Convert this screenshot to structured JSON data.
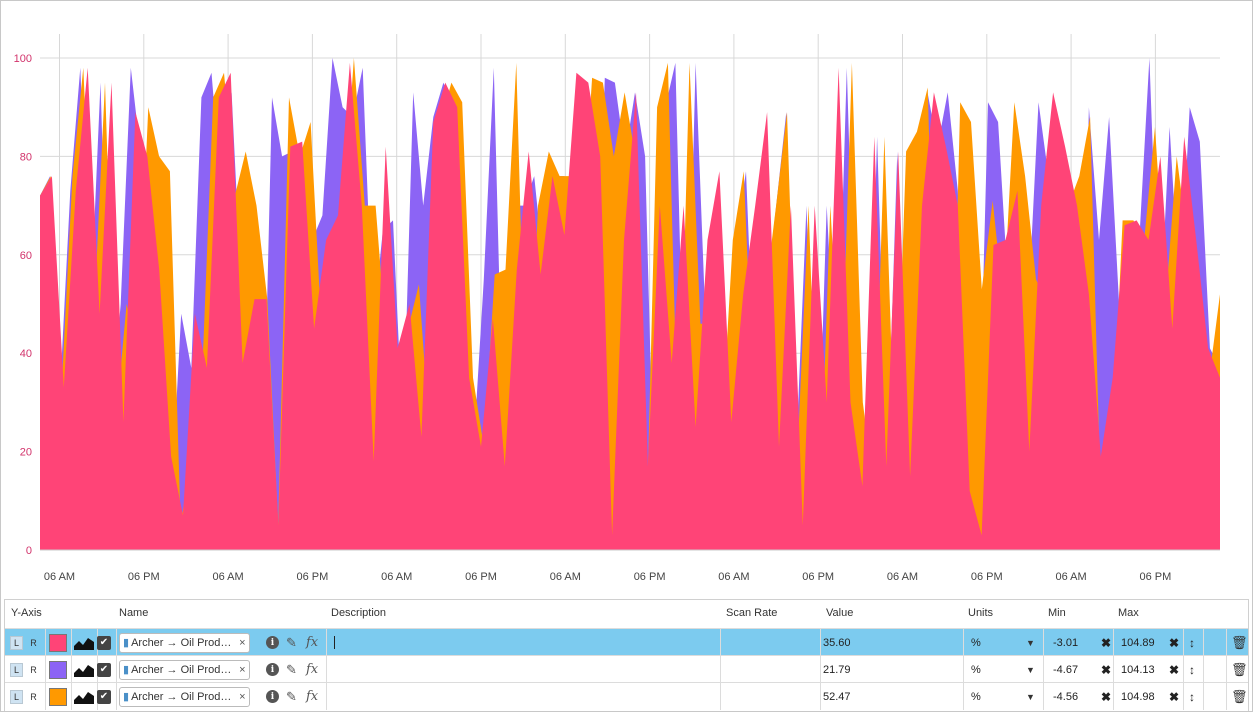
{
  "chart_data": {
    "type": "area",
    "ylim": [
      0,
      105
    ],
    "yticks": [
      0,
      20,
      40,
      60,
      80,
      100
    ],
    "xticks": [
      "06 AM",
      "06 PM",
      "06 AM",
      "06 PM",
      "06 AM",
      "06 PM",
      "06 AM",
      "06 PM",
      "06 AM",
      "06 PM",
      "06 AM",
      "06 PM",
      "06 AM",
      "06 PM"
    ],
    "grid": true,
    "series": [
      {
        "color": "#8c64f5",
        "values": [
          72,
          76,
          33,
          73,
          98,
          48,
          95,
          26,
          50,
          98,
          80,
          57,
          19,
          10,
          48,
          37,
          92,
          97,
          72,
          93,
          51,
          51,
          6,
          92,
          80,
          81,
          45,
          63,
          68,
          100,
          90,
          88,
          98,
          45,
          65,
          67,
          23,
          93,
          70,
          88,
          95,
          90,
          35,
          21,
          55,
          98,
          18,
          70,
          70,
          76,
          56,
          76,
          76,
          62,
          90,
          30,
          96,
          95,
          80,
          93,
          80,
          2,
          90,
          99,
          17,
          99,
          46,
          46,
          25,
          63,
          77,
          26,
          52,
          70,
          89,
          21,
          70,
          5,
          70,
          30,
          98,
          30,
          13,
          84,
          17,
          81,
          15,
          70,
          93,
          82,
          93,
          73,
          18,
          13,
          91,
          87,
          53,
          71,
          50,
          91,
          76,
          65,
          50,
          5,
          90,
          63,
          88,
          50,
          67,
          63,
          100,
          44,
          86,
          51,
          90,
          83,
          41,
          37
        ]
      },
      {
        "color": "#ff9900",
        "values": [
          72,
          76,
          33,
          76,
          98,
          48,
          95,
          26,
          50,
          40,
          90,
          80,
          77,
          5,
          20,
          37,
          92,
          97,
          72,
          81,
          70,
          51,
          5,
          92,
          80,
          87,
          45,
          63,
          68,
          100,
          70,
          70,
          42,
          20,
          45,
          54,
          23,
          87,
          95,
          91,
          35,
          21,
          56,
          57,
          99,
          18,
          70,
          81,
          76,
          76,
          62,
          96,
          95,
          80,
          93,
          80,
          2,
          90,
          99,
          17,
          99,
          46,
          46,
          25,
          63,
          77,
          26,
          52,
          70,
          89,
          21,
          70,
          5,
          70,
          30,
          99,
          30,
          13,
          84,
          17,
          81,
          85,
          94,
          16,
          3,
          91,
          87,
          53,
          71,
          50,
          91,
          76,
          55,
          50,
          33,
          70,
          76,
          88,
          9,
          19,
          67,
          67,
          63,
          86,
          51,
          80,
          63,
          37,
          35,
          52
        ]
      },
      {
        "color": "#ff4477",
        "values": [
          72,
          76,
          33,
          73,
          98,
          48,
          95,
          26,
          89,
          80,
          57,
          19,
          7,
          48,
          37,
          92,
          97,
          38,
          51,
          51,
          5,
          82,
          83,
          45,
          63,
          68,
          99,
          70,
          18,
          82,
          41,
          50,
          23,
          87,
          95,
          90,
          35,
          21,
          47,
          17,
          57,
          81,
          56,
          76,
          64,
          97,
          95,
          80,
          3,
          63,
          93,
          17,
          70,
          38,
          70,
          25,
          63,
          77,
          26,
          52,
          70,
          89,
          21,
          70,
          5,
          70,
          30,
          98,
          30,
          13,
          84,
          17,
          81,
          15,
          70,
          93,
          82,
          70,
          12,
          3,
          62,
          63,
          73,
          20,
          70,
          93,
          82,
          70,
          52,
          19,
          35,
          66,
          67,
          63,
          80,
          45,
          84,
          63,
          41,
          35
        ]
      }
    ]
  },
  "table": {
    "headers": {
      "yaxis": "Y-Axis",
      "name": "Name",
      "description": "Description",
      "scan_rate": "Scan Rate",
      "value": "Value",
      "units": "Units",
      "min": "Min",
      "max": "Max"
    },
    "rows": [
      {
        "l": "L",
        "r": "R",
        "color": "#ff4477",
        "checked": "✔",
        "name": "Archer → Oil Produ…",
        "remove": "×",
        "value": "35.60",
        "units": "%",
        "min": "-3.01",
        "max": "104.89"
      },
      {
        "l": "L",
        "r": "R",
        "color": "#8c64f5",
        "checked": "✔",
        "name": "Archer → Oil Produ…",
        "remove": "×",
        "value": "21.79",
        "units": "%",
        "min": "-4.67",
        "max": "104.13"
      },
      {
        "l": "L",
        "r": "R",
        "color": "#ff9900",
        "checked": "✔",
        "name": "Archer → Oil Produ…",
        "remove": "×",
        "value": "52.47",
        "units": "%",
        "min": "-4.56",
        "max": "104.98"
      }
    ]
  },
  "icons": {
    "info": "i",
    "pencil": "✎",
    "fx": "fx",
    "dropdown": "▼",
    "clear": "✖",
    "updown": "↕",
    "trash": "🗑"
  }
}
